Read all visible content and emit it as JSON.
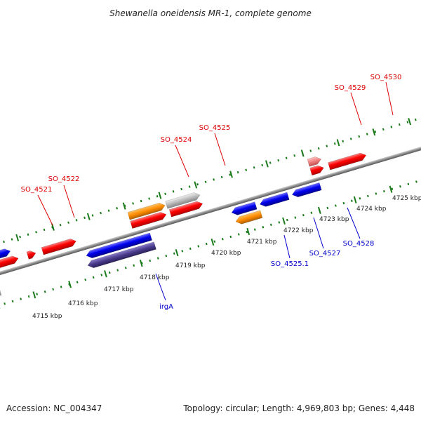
{
  "title": "Shewanella oneidensis MR-1, complete genome",
  "footer": {
    "accession": "Accession: NC_004347",
    "summary": "Topology: circular; Length: 4,969,803 bp; Genes: 4,448"
  },
  "ticks": [
    "4715 kbp",
    "4716 kbp",
    "4717 kbp",
    "4718 kbp",
    "4719 kbp",
    "4720 kbp",
    "4721 kbp",
    "4722 kbp",
    "4723 kbp",
    "4724 kbp",
    "4725 kbp"
  ],
  "gene_labels": {
    "so4521": "SO_4521",
    "so4522": "SO_4522",
    "so4524": "SO_4524",
    "so4525": "SO_4525",
    "so4529": "SO_4529",
    "so4530": "SO_4530",
    "irga": "irgA",
    "so4525_1": "SO_4525.1",
    "so4527": "SO_4527",
    "so4528": "SO_4528"
  },
  "colors": {
    "forward_gene": "#ff0000",
    "reverse_gene": "#0000ff",
    "hypothetical": "#bbbbbb",
    "rna": "#ff8c00",
    "selected": "#4b3b8c",
    "pale_gene": "#f08080",
    "tick": "#1a7a1a",
    "backbone": "#888888"
  }
}
